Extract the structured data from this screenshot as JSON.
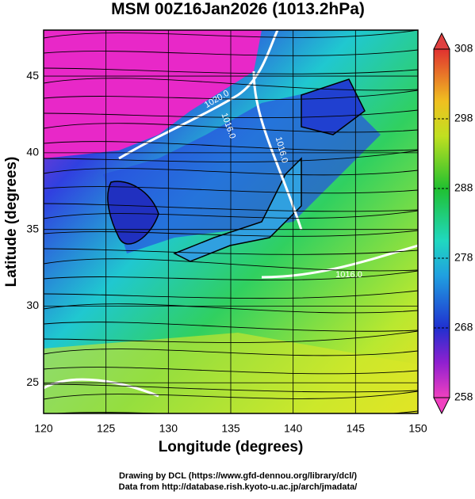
{
  "map": {
    "title": "MSM 00Z16Jan2026 (1013.2hPa)",
    "x_label": "Longitude (degrees)",
    "y_label": "Latitude  (degrees)",
    "xlim": [
      120,
      150
    ],
    "ylim": [
      23,
      48
    ],
    "xticks": [
      120,
      125,
      130,
      135,
      140,
      145,
      150
    ],
    "yticks": [
      25,
      30,
      35,
      40,
      45
    ],
    "colorbar": {
      "lim": [
        258,
        308
      ],
      "ticks": [
        258,
        268,
        278,
        288,
        298,
        308
      ]
    },
    "contour_labels": [
      "1020.0",
      "1016.0",
      "1016.0",
      "1016.0"
    ]
  },
  "credits": [
    "Drawing by DCL (https://www.gfd-dennou.org/library/dcl/)",
    "Data from http://database.rish.kyoto-u.ac.jp/arch/jmadata/"
  ]
}
